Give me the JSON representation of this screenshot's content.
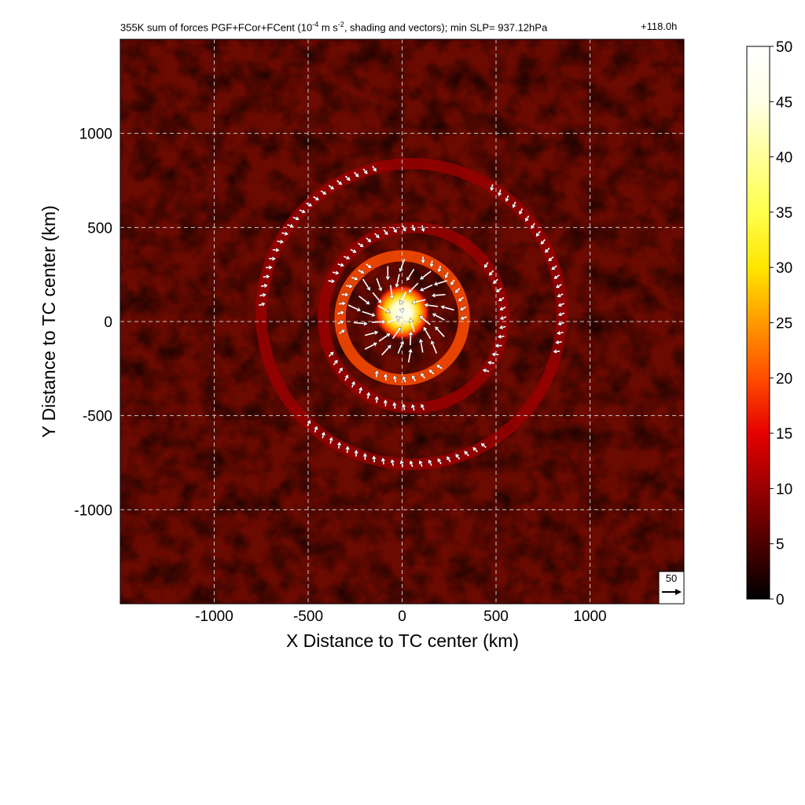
{
  "title": {
    "prefix": "355K sum of forces PGF+FCor+FCent (10",
    "exponent_1": "-4",
    "middle": " m s",
    "exponent_2": "-2",
    "suffix": ", shading and vectors); min SLP= 937.12hPa",
    "time": "+118.0h"
  },
  "chart_data": {
    "type": "heatmap",
    "description_variable": "sum of forces PGF+FCor+FCent",
    "xlabel": "X Distance to TC center (km)",
    "ylabel": "Y Distance to TC center (km)",
    "xlim": [
      -1500,
      1500
    ],
    "ylim": [
      -1500,
      1500
    ],
    "x_ticks": [
      -1000,
      -500,
      0,
      500,
      1000
    ],
    "y_ticks": [
      1000,
      500,
      0,
      -500,
      -1000
    ],
    "x_tick_labels": [
      "-1000",
      "-500",
      "0",
      "500",
      "1000"
    ],
    "y_tick_labels": [
      "1000",
      "500",
      "0",
      "-500",
      "-1000"
    ],
    "grid": true,
    "grid_style": "dashed",
    "colorbar": {
      "min": 0,
      "max": 50,
      "ticks": [
        0,
        5,
        10,
        15,
        20,
        25,
        30,
        35,
        40,
        45,
        50
      ],
      "tick_labels": [
        "0",
        "5",
        "10",
        "15",
        "20",
        "25",
        "30",
        "35",
        "40",
        "45",
        "50"
      ],
      "colormap": "hot",
      "colors": [
        "#000000",
        "#4d0000",
        "#990000",
        "#e60000",
        "#ff4d00",
        "#ff9900",
        "#ffe600",
        "#ffff4d",
        "#ffff99",
        "#ffffe6",
        "#ffffff"
      ]
    },
    "reference_vector": {
      "label": "50",
      "value": 50
    },
    "field_features": [
      {
        "feature": "core maximum",
        "center_x_km": 0,
        "center_y_km": 50,
        "radius_km": 150,
        "value": 50
      },
      {
        "feature": "inner ring",
        "center_x_km": 0,
        "center_y_km": 20,
        "radius_km": 330,
        "value": 20
      },
      {
        "feature": "middle spiral band",
        "center_x_km": 60,
        "center_y_km": 20,
        "radius_km": 480,
        "value": 12
      },
      {
        "feature": "outer spiral band",
        "center_x_km": 50,
        "center_y_km": 40,
        "radius_km": 800,
        "value": 10
      },
      {
        "feature": "background",
        "value": 4
      }
    ]
  }
}
